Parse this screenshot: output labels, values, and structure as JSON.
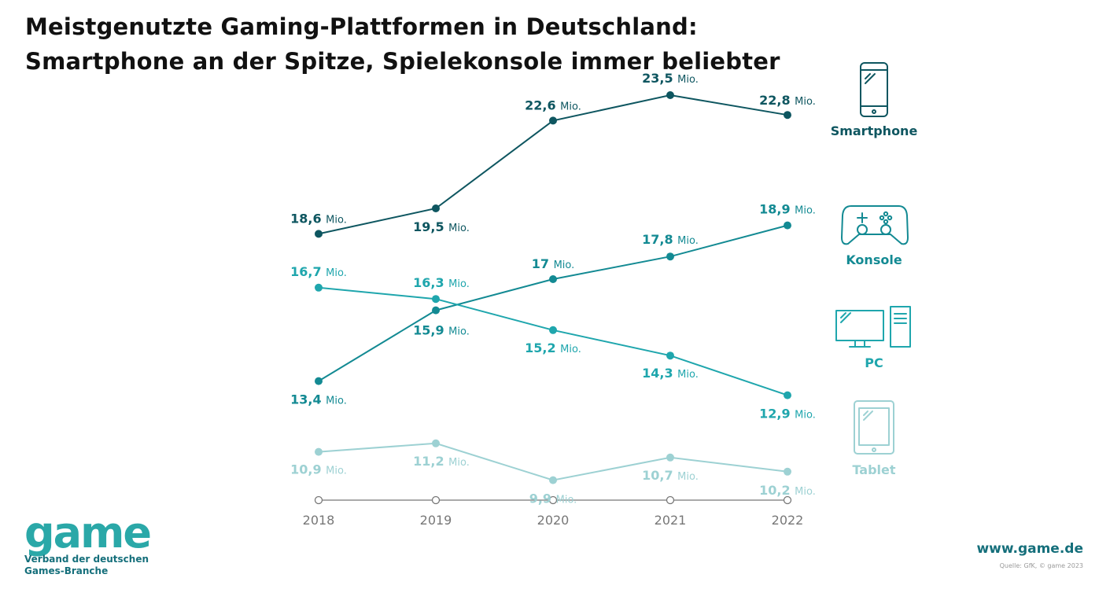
{
  "title": {
    "line1": "Meistgenutzte Gaming-Plattformen in Deutschland:",
    "line2": "Smartphone an der Spitze, Spielekonsole immer beliebter"
  },
  "colors": {
    "smartphone": "#0e5660",
    "konsole": "#138a93",
    "pc": "#1fa6ad",
    "tablet": "#9dd1d3",
    "axis": "#777777",
    "brand": "#2aa8a8"
  },
  "chart_data": {
    "type": "line",
    "title": "Meistgenutzte Gaming-Plattformen in Deutschland: Smartphone an der Spitze, Spielekonsole immer beliebter",
    "xlabel": "",
    "ylabel": "",
    "unit": "Mio.",
    "x": [
      "2018",
      "2019",
      "2020",
      "2021",
      "2022"
    ],
    "ylim": [
      9,
      24
    ],
    "grid": false,
    "legend_position": "right",
    "series": [
      {
        "name": "Smartphone",
        "values": [
          18.6,
          19.5,
          22.6,
          23.5,
          22.8
        ],
        "labels": [
          "18,6",
          "19,5",
          "22,6",
          "23,5",
          "22,8"
        ],
        "color": "#0e5660",
        "icon": "smartphone-icon"
      },
      {
        "name": "Konsole",
        "values": [
          13.4,
          15.9,
          17,
          17.8,
          18.9
        ],
        "labels": [
          "13,4",
          "15,9",
          "17",
          "17,8",
          "18,9"
        ],
        "color": "#138a93",
        "icon": "gamepad-icon"
      },
      {
        "name": "PC",
        "values": [
          16.7,
          16.3,
          15.2,
          14.3,
          12.9
        ],
        "labels": [
          "16,7",
          "16,3",
          "15,2",
          "14,3",
          "12,9"
        ],
        "color": "#1fa6ad",
        "icon": "desktop-pc-icon"
      },
      {
        "name": "Tablet",
        "values": [
          10.9,
          11.2,
          9.9,
          10.7,
          10.2
        ],
        "labels": [
          "10,9",
          "11,2",
          "9,9",
          "10,7",
          "10,2"
        ],
        "color": "#9dd1d3",
        "icon": "tablet-icon"
      }
    ]
  },
  "logo": {
    "word": "game",
    "tagline_line1": "Verband der deutschen",
    "tagline_line2": "Games-Branche"
  },
  "website": "www.game.de",
  "source": "Quelle: GfK, © game 2023"
}
